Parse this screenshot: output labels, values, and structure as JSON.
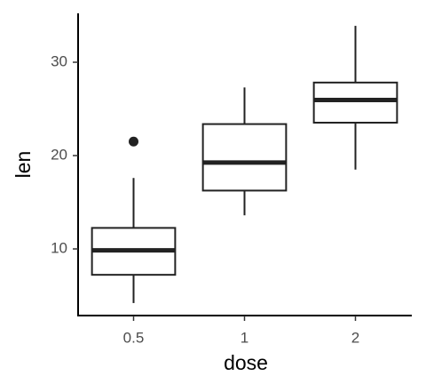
{
  "chart_data": {
    "type": "box",
    "x_label": "dose",
    "y_label": "len",
    "categories": [
      "0.5",
      "1",
      "2"
    ],
    "boxes": [
      {
        "min": 4.2,
        "q1": 7.225,
        "median": 9.85,
        "q3": 12.25,
        "max": 17.6,
        "outliers": [
          21.5
        ]
      },
      {
        "min": 13.6,
        "q1": 16.25,
        "median": 19.25,
        "q3": 23.375,
        "max": 27.3,
        "outliers": []
      },
      {
        "min": 18.5,
        "q1": 23.525,
        "median": 25.95,
        "q3": 27.825,
        "max": 33.9,
        "outliers": []
      }
    ],
    "color": "#222222",
    "fill": "#ffffff",
    "ylim": [
      2.86,
      35.24
    ],
    "yticks": [
      10,
      20,
      30
    ],
    "grid": false
  }
}
